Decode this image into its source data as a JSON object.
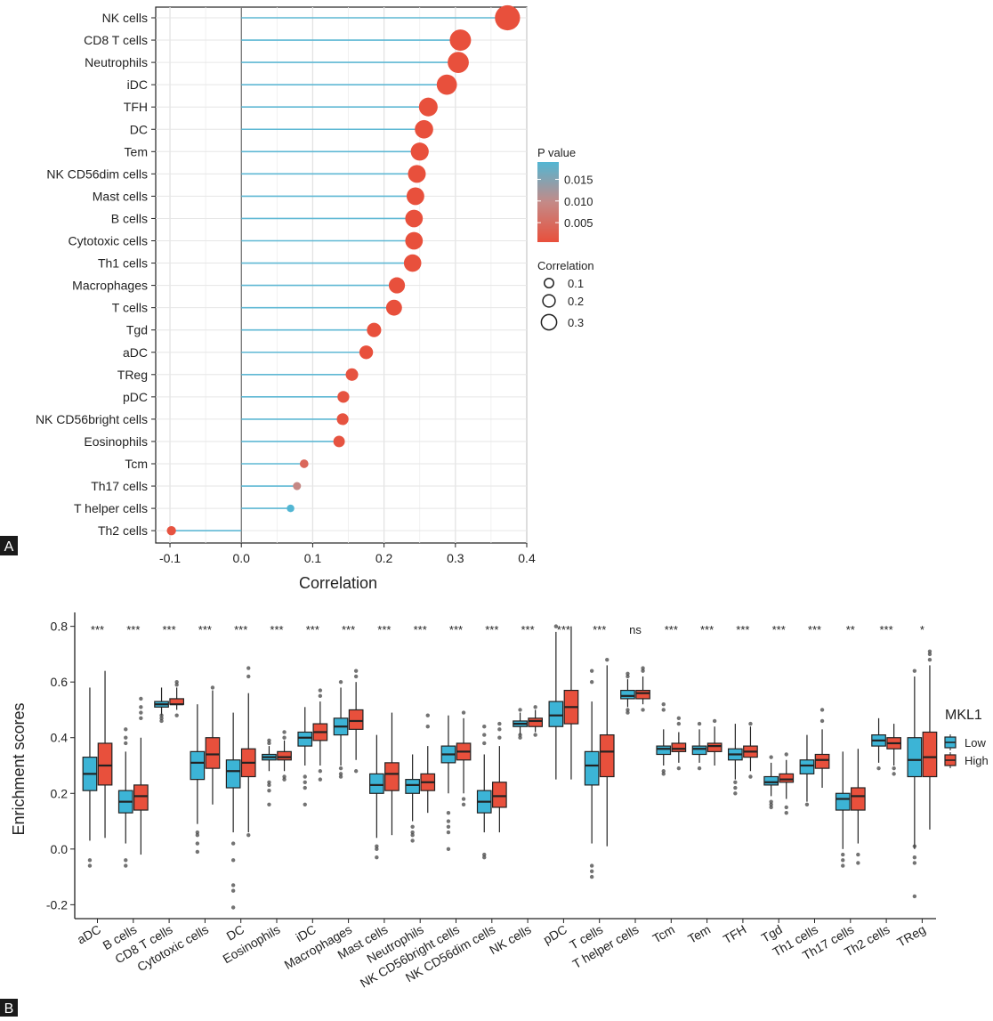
{
  "panel_labels": {
    "a": "A",
    "b": "B"
  },
  "colors": {
    "low": "#3cb4d6",
    "high": "#e8503c",
    "pmid": "#c08a88",
    "lollipop_line": "#5fb8d4"
  },
  "chart_data": [
    {
      "type": "scatter",
      "subtype": "lollipop",
      "panel": "A",
      "title": "",
      "xlabel": "Correlation",
      "ylabel": "",
      "xlim": [
        -0.12,
        0.4
      ],
      "xticks": [
        "-0.1",
        "0.0",
        "0.1",
        "0.2",
        "0.3",
        "0.4"
      ],
      "xtick_values": [
        -0.1,
        0.0,
        0.1,
        0.2,
        0.3,
        0.4
      ],
      "grid": true,
      "legend_position": "right",
      "categories": [
        "NK cells",
        "CD8 T cells",
        "Neutrophils",
        "iDC",
        "TFH",
        "DC",
        "Tem",
        "NK CD56dim cells",
        "Mast cells",
        "B cells",
        "Cytotoxic cells",
        "Th1 cells",
        "Macrophages",
        "T cells",
        "Tgd",
        "aDC",
        "TReg",
        "pDC",
        "NK CD56bright cells",
        "Eosinophils",
        "Tcm",
        "Th17 cells",
        "T helper cells",
        "Th2 cells"
      ],
      "correlation": [
        0.373,
        0.307,
        0.304,
        0.288,
        0.262,
        0.256,
        0.25,
        0.246,
        0.244,
        0.242,
        0.242,
        0.24,
        0.218,
        0.214,
        0.186,
        0.175,
        0.155,
        0.143,
        0.142,
        0.137,
        0.088,
        0.078,
        0.069,
        -0.098
      ],
      "p_value": [
        0.0001,
        0.0001,
        0.0001,
        0.0001,
        0.0001,
        0.0001,
        0.0001,
        0.0001,
        0.0001,
        0.0001,
        0.0001,
        0.0001,
        0.0001,
        0.0001,
        0.0005,
        0.0005,
        0.001,
        0.001,
        0.001,
        0.001,
        0.004,
        0.009,
        0.019,
        0.001
      ],
      "p_legend": {
        "title": "P value",
        "ticks": [
          "0.015",
          "0.010",
          "0.005"
        ],
        "tick_values": [
          0.015,
          0.01,
          0.005
        ]
      },
      "size_legend": {
        "title": "Correlation",
        "labels": [
          "0.1",
          "0.2",
          "0.3"
        ],
        "values": [
          0.1,
          0.2,
          0.3
        ]
      }
    },
    {
      "type": "box",
      "panel": "B",
      "title": "",
      "xlabel": "",
      "ylabel": "Enrichment scores",
      "ylim": [
        -0.25,
        0.85
      ],
      "yticks": [
        "0.8",
        "0.6",
        "0.4",
        "0.2",
        "0.0",
        "-0.2"
      ],
      "ytick_values": [
        0.8,
        0.6,
        0.4,
        0.2,
        0.0,
        -0.2
      ],
      "legend_position": "right",
      "legend_title": "MKL1",
      "series_names": [
        "Low",
        "High"
      ],
      "categories": [
        "aDC",
        "B cells",
        "CD8 T cells",
        "Cytotoxic cells",
        "DC",
        "Eosinophils",
        "iDC",
        "Macrophages",
        "Mast cells",
        "Neutrophils",
        "NK CD56bright cells",
        "NK CD56dim cells",
        "NK cells",
        "pDC",
        "T cells",
        "T helper cells",
        "Tcm",
        "Tem",
        "TFH",
        "Tgd",
        "Th1 cells",
        "Th17 cells",
        "Th2 cells",
        "TReg"
      ],
      "significance": [
        "***",
        "***",
        "***",
        "***",
        "***",
        "***",
        "***",
        "***",
        "***",
        "***",
        "***",
        "***",
        "***",
        "***",
        "***",
        "ns",
        "***",
        "***",
        "***",
        "***",
        "***",
        "**",
        "***",
        "*"
      ],
      "low": [
        {
          "whislo": 0.03,
          "q1": 0.21,
          "med": 0.27,
          "q3": 0.33,
          "whishi": 0.58,
          "outliers": [
            -0.04,
            -0.06
          ]
        },
        {
          "whislo": 0.02,
          "q1": 0.13,
          "med": 0.17,
          "q3": 0.21,
          "whishi": 0.35,
          "outliers": [
            -0.04,
            -0.06,
            0.38,
            0.4,
            0.43
          ]
        },
        {
          "whislo": 0.48,
          "q1": 0.51,
          "med": 0.52,
          "q3": 0.53,
          "whishi": 0.58,
          "outliers": [
            0.46,
            0.47,
            0.48
          ]
        },
        {
          "whislo": 0.09,
          "q1": 0.25,
          "med": 0.31,
          "q3": 0.35,
          "whishi": 0.52,
          "outliers": [
            -0.01,
            0.02,
            0.05,
            0.06
          ]
        },
        {
          "whislo": 0.06,
          "q1": 0.22,
          "med": 0.28,
          "q3": 0.32,
          "whishi": 0.49,
          "outliers": [
            0.02,
            -0.04,
            -0.13,
            -0.15,
            -0.21
          ]
        },
        {
          "whislo": 0.28,
          "q1": 0.32,
          "med": 0.33,
          "q3": 0.34,
          "whishi": 0.37,
          "outliers": [
            0.16,
            0.21,
            0.23,
            0.24,
            0.38,
            0.39
          ]
        },
        {
          "whislo": 0.3,
          "q1": 0.37,
          "med": 0.4,
          "q3": 0.42,
          "whishi": 0.51,
          "outliers": [
            0.16,
            0.22,
            0.24,
            0.26
          ]
        },
        {
          "whislo": 0.3,
          "q1": 0.41,
          "med": 0.44,
          "q3": 0.47,
          "whishi": 0.58,
          "outliers": [
            0.26,
            0.27,
            0.29,
            0.6
          ]
        },
        {
          "whislo": 0.04,
          "q1": 0.2,
          "med": 0.23,
          "q3": 0.27,
          "whishi": 0.41,
          "outliers": [
            -0.03,
            0.0,
            0.01
          ]
        },
        {
          "whislo": 0.1,
          "q1": 0.2,
          "med": 0.23,
          "q3": 0.25,
          "whishi": 0.34,
          "outliers": [
            0.03,
            0.05,
            0.06,
            0.08
          ]
        },
        {
          "whislo": 0.2,
          "q1": 0.31,
          "med": 0.34,
          "q3": 0.37,
          "whishi": 0.48,
          "outliers": [
            0.0,
            0.06,
            0.08,
            0.1,
            0.13
          ]
        },
        {
          "whislo": 0.06,
          "q1": 0.13,
          "med": 0.17,
          "q3": 0.21,
          "whishi": 0.34,
          "outliers": [
            -0.02,
            -0.03,
            0.38,
            0.41,
            0.44
          ]
        },
        {
          "whislo": 0.41,
          "q1": 0.44,
          "med": 0.45,
          "q3": 0.46,
          "whishi": 0.49,
          "outliers": [
            0.4,
            0.41,
            0.5
          ]
        },
        {
          "whislo": 0.25,
          "q1": 0.44,
          "med": 0.48,
          "q3": 0.53,
          "whishi": 0.78,
          "outliers": [
            0.8
          ]
        },
        {
          "whislo": 0.02,
          "q1": 0.23,
          "med": 0.3,
          "q3": 0.35,
          "whishi": 0.53,
          "outliers": [
            -0.06,
            -0.08,
            -0.1,
            0.6,
            0.64
          ]
        },
        {
          "whislo": 0.51,
          "q1": 0.54,
          "med": 0.55,
          "q3": 0.57,
          "whishi": 0.61,
          "outliers": [
            0.49,
            0.5,
            0.62,
            0.63
          ]
        },
        {
          "whislo": 0.3,
          "q1": 0.34,
          "med": 0.36,
          "q3": 0.37,
          "whishi": 0.43,
          "outliers": [
            0.27,
            0.28,
            0.5,
            0.52
          ]
        },
        {
          "whislo": 0.31,
          "q1": 0.34,
          "med": 0.36,
          "q3": 0.37,
          "whishi": 0.43,
          "outliers": [
            0.29,
            0.45
          ]
        },
        {
          "whislo": 0.25,
          "q1": 0.32,
          "med": 0.34,
          "q3": 0.36,
          "whishi": 0.45,
          "outliers": [
            0.2,
            0.22,
            0.24
          ]
        },
        {
          "whislo": 0.19,
          "q1": 0.23,
          "med": 0.24,
          "q3": 0.26,
          "whishi": 0.31,
          "outliers": [
            0.15,
            0.16,
            0.17,
            0.33
          ]
        },
        {
          "whislo": 0.17,
          "q1": 0.27,
          "med": 0.3,
          "q3": 0.32,
          "whishi": 0.41,
          "outliers": [
            0.16
          ]
        },
        {
          "whislo": 0.0,
          "q1": 0.14,
          "med": 0.18,
          "q3": 0.2,
          "whishi": 0.35,
          "outliers": [
            -0.02,
            -0.04,
            -0.06
          ]
        },
        {
          "whislo": 0.31,
          "q1": 0.37,
          "med": 0.39,
          "q3": 0.41,
          "whishi": 0.47,
          "outliers": [
            0.29
          ]
        },
        {
          "whislo": 0.0,
          "q1": 0.26,
          "med": 0.32,
          "q3": 0.4,
          "whishi": 0.62,
          "outliers": [
            0.01,
            -0.03,
            -0.05,
            -0.17,
            0.64
          ]
        }
      ],
      "high": [
        {
          "whislo": 0.04,
          "q1": 0.23,
          "med": 0.3,
          "q3": 0.38,
          "whishi": 0.64,
          "outliers": []
        },
        {
          "whislo": -0.02,
          "q1": 0.14,
          "med": 0.19,
          "q3": 0.23,
          "whishi": 0.4,
          "outliers": [
            0.47,
            0.49,
            0.51,
            0.54
          ]
        },
        {
          "whislo": 0.5,
          "q1": 0.52,
          "med": 0.52,
          "q3": 0.54,
          "whishi": 0.58,
          "outliers": [
            0.48,
            0.59,
            0.6
          ]
        },
        {
          "whislo": 0.16,
          "q1": 0.29,
          "med": 0.34,
          "q3": 0.4,
          "whishi": 0.57,
          "outliers": [
            0.58
          ]
        },
        {
          "whislo": 0.06,
          "q1": 0.26,
          "med": 0.31,
          "q3": 0.36,
          "whishi": 0.56,
          "outliers": [
            0.05,
            0.62,
            0.65
          ]
        },
        {
          "whislo": 0.28,
          "q1": 0.32,
          "med": 0.33,
          "q3": 0.35,
          "whishi": 0.39,
          "outliers": [
            0.25,
            0.26,
            0.4,
            0.42
          ]
        },
        {
          "whislo": 0.3,
          "q1": 0.39,
          "med": 0.42,
          "q3": 0.45,
          "whishi": 0.53,
          "outliers": [
            0.25,
            0.28,
            0.55,
            0.57
          ]
        },
        {
          "whislo": 0.32,
          "q1": 0.43,
          "med": 0.46,
          "q3": 0.5,
          "whishi": 0.6,
          "outliers": [
            0.28,
            0.62,
            0.64
          ]
        },
        {
          "whislo": 0.05,
          "q1": 0.21,
          "med": 0.27,
          "q3": 0.31,
          "whishi": 0.49,
          "outliers": []
        },
        {
          "whislo": 0.13,
          "q1": 0.21,
          "med": 0.24,
          "q3": 0.27,
          "whishi": 0.37,
          "outliers": [
            0.44,
            0.48
          ]
        },
        {
          "whislo": 0.2,
          "q1": 0.32,
          "med": 0.35,
          "q3": 0.38,
          "whishi": 0.47,
          "outliers": [
            0.16,
            0.18,
            0.49
          ]
        },
        {
          "whislo": 0.06,
          "q1": 0.15,
          "med": 0.19,
          "q3": 0.24,
          "whishi": 0.37,
          "outliers": [
            0.4,
            0.43,
            0.45
          ]
        },
        {
          "whislo": 0.42,
          "q1": 0.44,
          "med": 0.46,
          "q3": 0.47,
          "whishi": 0.5,
          "outliers": [
            0.41,
            0.51
          ]
        },
        {
          "whislo": 0.25,
          "q1": 0.45,
          "med": 0.51,
          "q3": 0.57,
          "whishi": 0.8,
          "outliers": []
        },
        {
          "whislo": 0.01,
          "q1": 0.26,
          "med": 0.35,
          "q3": 0.41,
          "whishi": 0.66,
          "outliers": [
            0.68
          ]
        },
        {
          "whislo": 0.52,
          "q1": 0.54,
          "med": 0.56,
          "q3": 0.57,
          "whishi": 0.62,
          "outliers": [
            0.5,
            0.64,
            0.65
          ]
        },
        {
          "whislo": 0.31,
          "q1": 0.35,
          "med": 0.36,
          "q3": 0.38,
          "whishi": 0.42,
          "outliers": [
            0.29,
            0.45,
            0.47
          ]
        },
        {
          "whislo": 0.3,
          "q1": 0.35,
          "med": 0.37,
          "q3": 0.38,
          "whishi": 0.44,
          "outliers": [
            0.46
          ]
        },
        {
          "whislo": 0.28,
          "q1": 0.33,
          "med": 0.35,
          "q3": 0.37,
          "whishi": 0.44,
          "outliers": [
            0.26,
            0.45
          ]
        },
        {
          "whislo": 0.18,
          "q1": 0.24,
          "med": 0.25,
          "q3": 0.27,
          "whishi": 0.32,
          "outliers": [
            0.13,
            0.15,
            0.34
          ]
        },
        {
          "whislo": 0.22,
          "q1": 0.29,
          "med": 0.32,
          "q3": 0.34,
          "whishi": 0.43,
          "outliers": [
            0.46,
            0.5
          ]
        },
        {
          "whislo": 0.02,
          "q1": 0.14,
          "med": 0.19,
          "q3": 0.22,
          "whishi": 0.36,
          "outliers": [
            -0.02,
            -0.05
          ]
        },
        {
          "whislo": 0.3,
          "q1": 0.36,
          "med": 0.38,
          "q3": 0.4,
          "whishi": 0.45,
          "outliers": [
            0.27,
            0.29
          ]
        },
        {
          "whislo": 0.07,
          "q1": 0.26,
          "med": 0.33,
          "q3": 0.42,
          "whishi": 0.66,
          "outliers": [
            0.68,
            0.7,
            0.71
          ]
        }
      ]
    }
  ]
}
